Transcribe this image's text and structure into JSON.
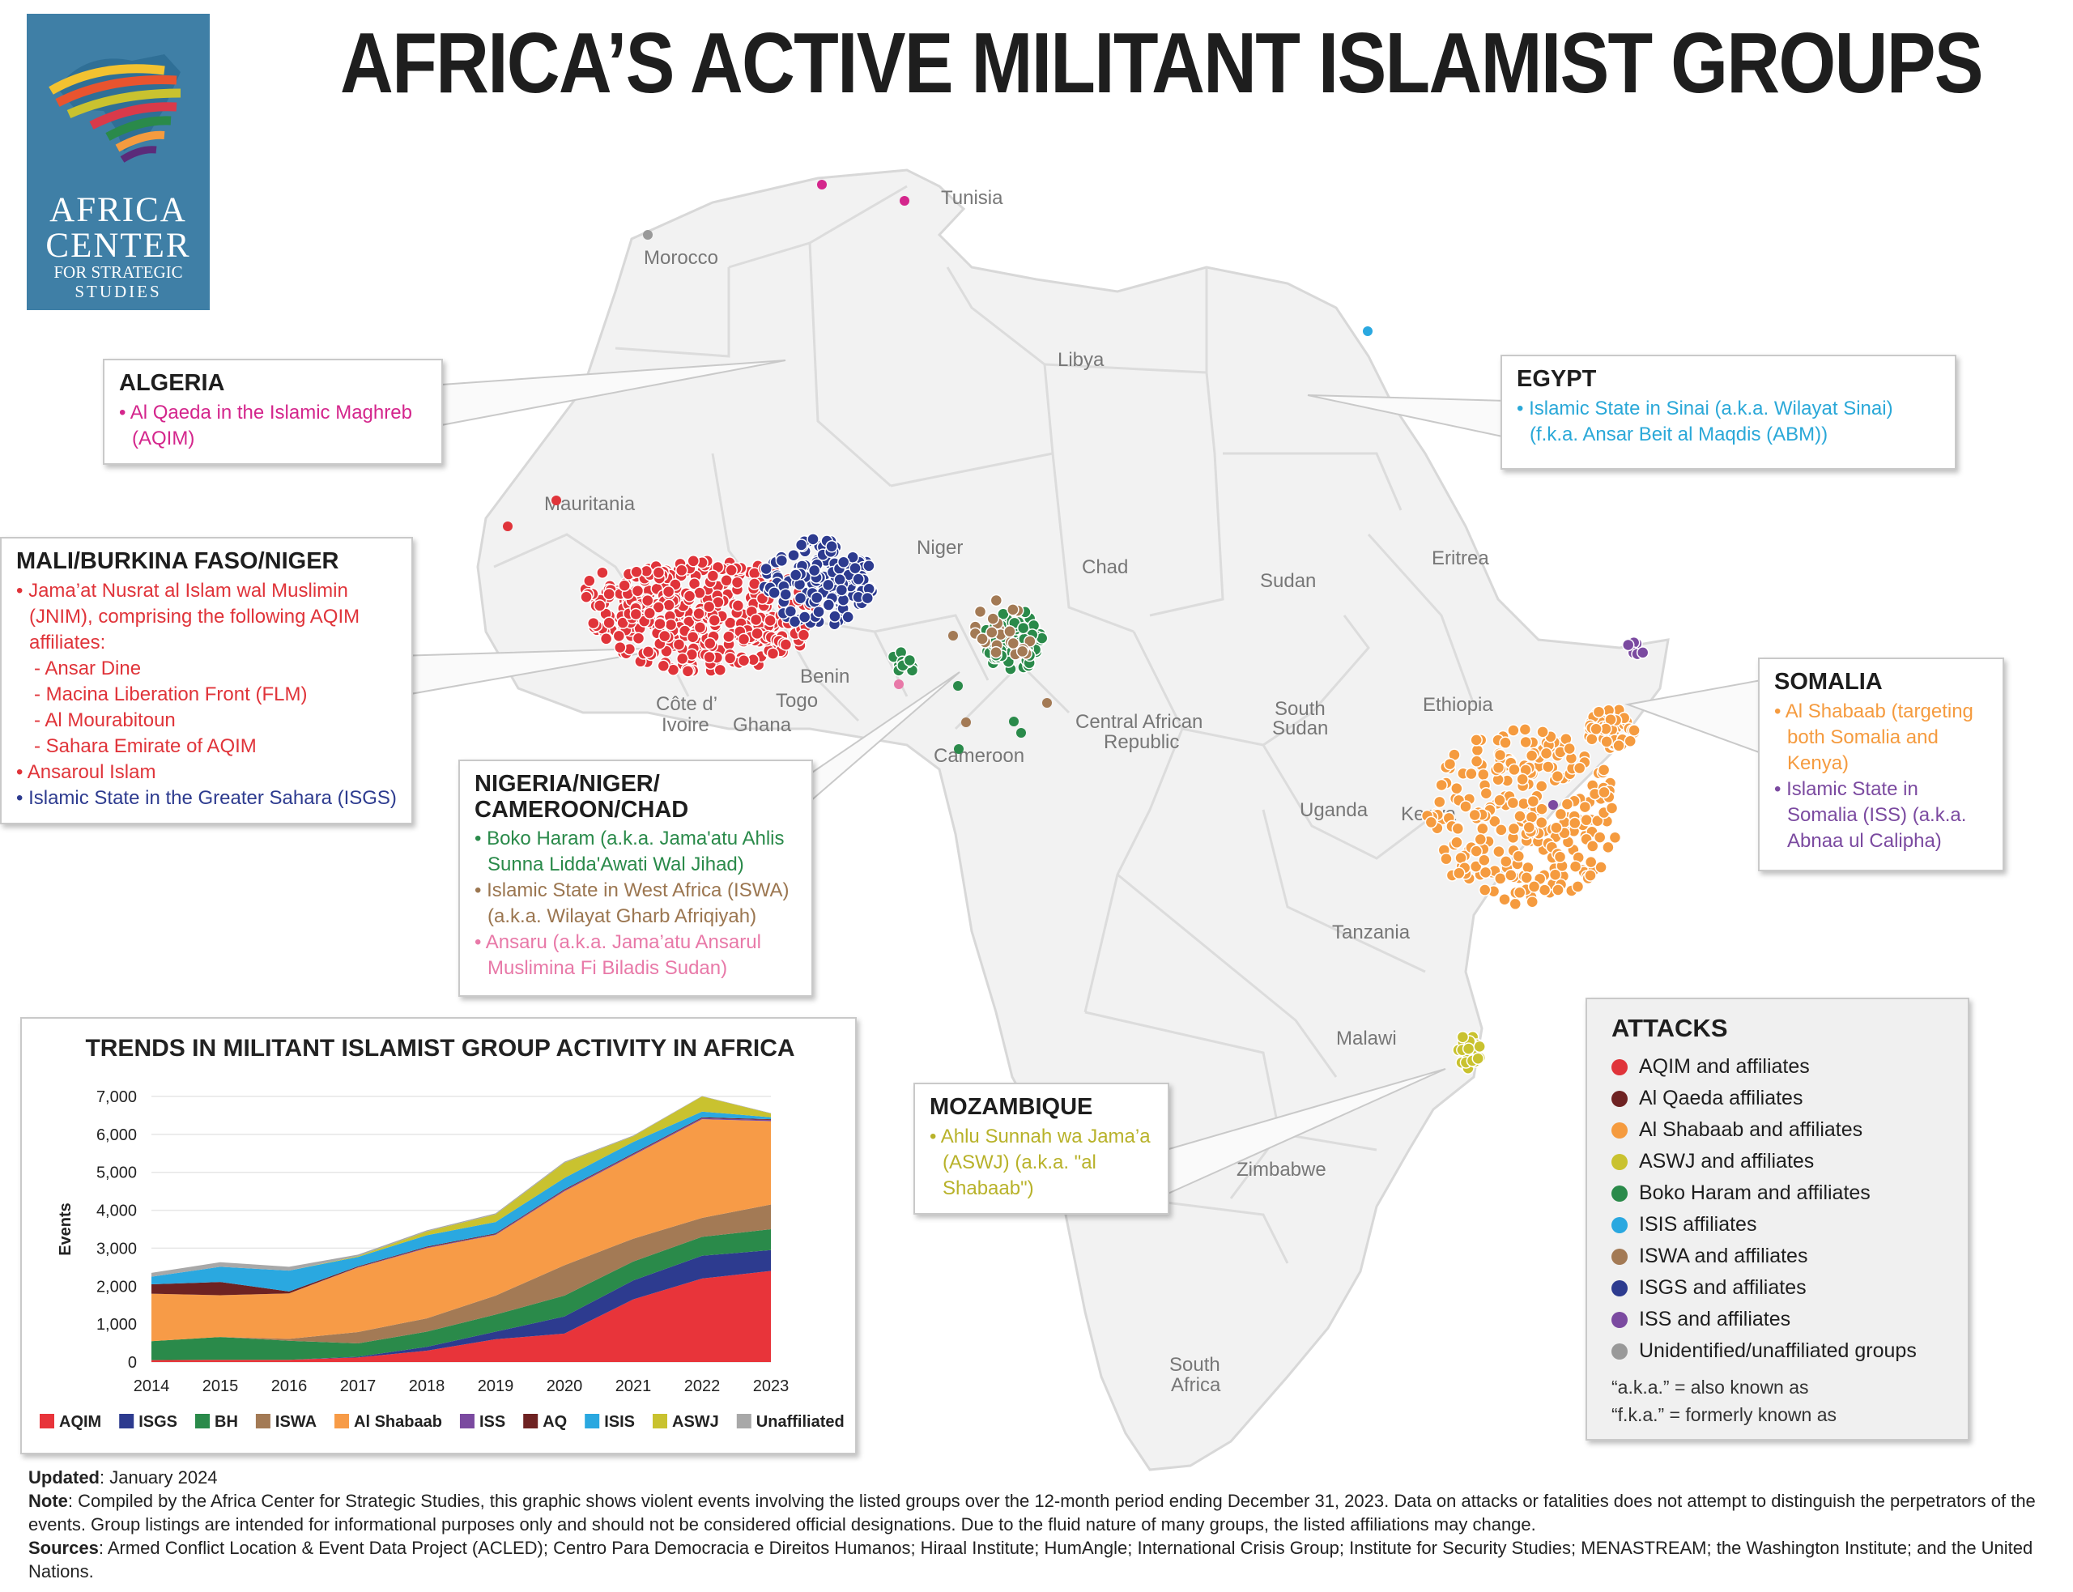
{
  "title": "AFRICA’S ACTIVE MILITANT ISLAMIST GROUPS",
  "logo": {
    "line1": "AFRICA",
    "line2": "CENTER",
    "line3": "FOR STRATEGIC",
    "line4": "STUDIES"
  },
  "countries": {
    "tunisia": "Tunisia",
    "morocco": "Morocco",
    "libya": "Libya",
    "mauritania": "Mauritania",
    "niger": "Niger",
    "chad": "Chad",
    "sudan": "Sudan",
    "eritrea": "Eritrea",
    "benin": "Benin",
    "togo": "Togo",
    "cote1": "Côte d’",
    "cote2": "Ivoire",
    "ghana": "Ghana",
    "cameroon": "Cameroon",
    "car1": "Central African",
    "car2": "Republic",
    "ssudan1": "South",
    "ssudan2": "Sudan",
    "ethiopia": "Ethiopia",
    "uganda": "Uganda",
    "kenya": "Kenya",
    "tanzania": "Tanzania",
    "malawi": "Malawi",
    "zimbabwe": "Zimbabwe",
    "safrica1": "South",
    "safrica2": "Africa"
  },
  "callouts": {
    "algeria": {
      "title": "ALGERIA",
      "l1": "• Al Qaeda in the Islamic Maghreb",
      "l2": "(AQIM)"
    },
    "egypt": {
      "title": "EGYPT",
      "l1": "• Islamic State in Sinai (a.k.a. Wilayat Sinai)",
      "l2": "(f.k.a. Ansar Beit al Maqdis (ABM))"
    },
    "mali": {
      "title": "MALI/BURKINA FASO/NIGER",
      "l1": "• Jama’at Nusrat al Islam wal Muslimin",
      "l2": "(JNIM), comprising the following AQIM",
      "l3": "affiliates:",
      "l4": "- Ansar Dine",
      "l5": "- Macina Liberation Front (FLM)",
      "l6": "- Al Mourabitoun",
      "l7": "- Sahara Emirate of AQIM",
      "l8": "• Ansaroul Islam",
      "l9": "• Islamic State in the Greater Sahara (ISGS)"
    },
    "nigeria": {
      "title1": "NIGERIA/NIGER/",
      "title2": "CAMEROON/CHAD",
      "l1": "• Boko Haram (a.k.a. Jama'atu Ahlis",
      "l2": "Sunna Lidda'Awati Wal Jihad)",
      "l3": "• Islamic State in West Africa (ISWA)",
      "l4": "(a.k.a. Wilayat Gharb Afriqiyah)",
      "l5": "• Ansaru (a.k.a. Jama’atu Ansarul",
      "l6": "Muslimina Fi Biladis Sudan)"
    },
    "somalia": {
      "title": "SOMALIA",
      "l1": "• Al Shabaab (targeting",
      "l2": "both Somalia and",
      "l3": "Kenya)",
      "l4": "• Islamic State in",
      "l5": "Somalia (ISS) (a.k.a.",
      "l6": "Abnaa ul Calipha)"
    },
    "mozambique": {
      "title": "MOZAMBIQUE",
      "l1": "• Ahlu Sunnah wa Jama’a",
      "l2": "(ASWJ) (a.k.a. \"al",
      "l3": "Shabaab\")"
    }
  },
  "legend": {
    "title": "ATTACKS",
    "items": [
      {
        "label": "AQIM and affiliates",
        "color": "#e0343a"
      },
      {
        "label": "Al Qaeda affiliates",
        "color": "#6e2222"
      },
      {
        "label": "Al Shabaab and affiliates",
        "color": "#f59b3f"
      },
      {
        "label": "ASWJ and affiliates",
        "color": "#c9c22f"
      },
      {
        "label": "Boko Haram and affiliates",
        "color": "#2a8a4a"
      },
      {
        "label": "ISIS affiliates",
        "color": "#2aa8e0"
      },
      {
        "label": "ISWA and affiliates",
        "color": "#a37a55"
      },
      {
        "label": "ISGS and affiliates",
        "color": "#2d3b8f"
      },
      {
        "label": "ISS and affiliates",
        "color": "#7b4aa0"
      },
      {
        "label": "Unidentified/unaffiliated groups",
        "color": "#999999"
      }
    ],
    "note1": "“a.k.a.” = also known as",
    "note2": "“f.k.a.” = formerly known as"
  },
  "chart_data": {
    "type": "area",
    "title": "TRENDS IN MILITANT ISLAMIST GROUP ACTIVITY IN AFRICA",
    "ylabel": "Events",
    "xlabel": "",
    "x": [
      2014,
      2015,
      2016,
      2017,
      2018,
      2019,
      2020,
      2021,
      2022,
      2023
    ],
    "ylim": [
      0,
      7000
    ],
    "yticks": [
      "0",
      "1,000",
      "2,000",
      "3,000",
      "4,000",
      "5,000",
      "6,000",
      "7,000"
    ],
    "series": [
      {
        "name": "AQIM",
        "color": "#e8343a",
        "values": [
          50,
          60,
          60,
          120,
          300,
          600,
          750,
          1650,
          2200,
          2400
        ]
      },
      {
        "name": "ISGS",
        "color": "#2d3b8f",
        "values": [
          0,
          0,
          0,
          20,
          100,
          200,
          450,
          500,
          600,
          550
        ]
      },
      {
        "name": "BH",
        "color": "#2a8a4a",
        "values": [
          500,
          600,
          500,
          350,
          400,
          450,
          550,
          500,
          500,
          550
        ]
      },
      {
        "name": "ISWA",
        "color": "#a37a55",
        "values": [
          0,
          0,
          50,
          300,
          350,
          500,
          800,
          600,
          500,
          650
        ]
      },
      {
        "name": "Al Shabaab",
        "color": "#f79b47",
        "values": [
          1250,
          1100,
          1200,
          1700,
          1850,
          1600,
          1950,
          2200,
          2600,
          2200
        ]
      },
      {
        "name": "ISS",
        "color": "#7b4aa0",
        "values": [
          0,
          0,
          0,
          10,
          20,
          20,
          30,
          30,
          30,
          30
        ]
      },
      {
        "name": "AQ",
        "color": "#6e2222",
        "values": [
          250,
          350,
          50,
          20,
          20,
          20,
          20,
          20,
          20,
          20
        ]
      },
      {
        "name": "ISIS",
        "color": "#2aa8e0",
        "values": [
          200,
          400,
          550,
          250,
          300,
          300,
          300,
          300,
          150,
          50
        ]
      },
      {
        "name": "ASWJ",
        "color": "#c9c22f",
        "values": [
          0,
          0,
          0,
          20,
          100,
          200,
          400,
          150,
          400,
          100
        ]
      },
      {
        "name": "Unaffiliated",
        "color": "#a8a8a8",
        "values": [
          100,
          120,
          100,
          40,
          30,
          30,
          30,
          20,
          10,
          10
        ]
      }
    ]
  },
  "footer": {
    "updated_label": "Updated",
    "updated_value": ": January 2024",
    "note_label": "Note",
    "note_value": ": Compiled by the Africa Center for Strategic Studies, this graphic shows violent events involving the listed groups over the 12-month period ending December 31, 2023. Data on attacks or fatalities does not attempt to distinguish the perpetrators of the events. Group listings are intended for informational purposes only and should not be considered official designations. Due to the fluid nature of many groups, the listed affiliations may change.",
    "sources_label": "Sources",
    "sources_value": ": Armed Conflict Location & Event Data Project (ACLED); Centro Para Democracia e Direitos Humanos; Hiraal Institute; HumAngle; International Crisis Group;  Institute for Security Studies; MENASTREAM; the Washington Institute; and the United Nations."
  },
  "colors": {
    "logo_bg": "#3f7fa6",
    "land": "#f2f2f2",
    "border": "#d8d8d8"
  }
}
